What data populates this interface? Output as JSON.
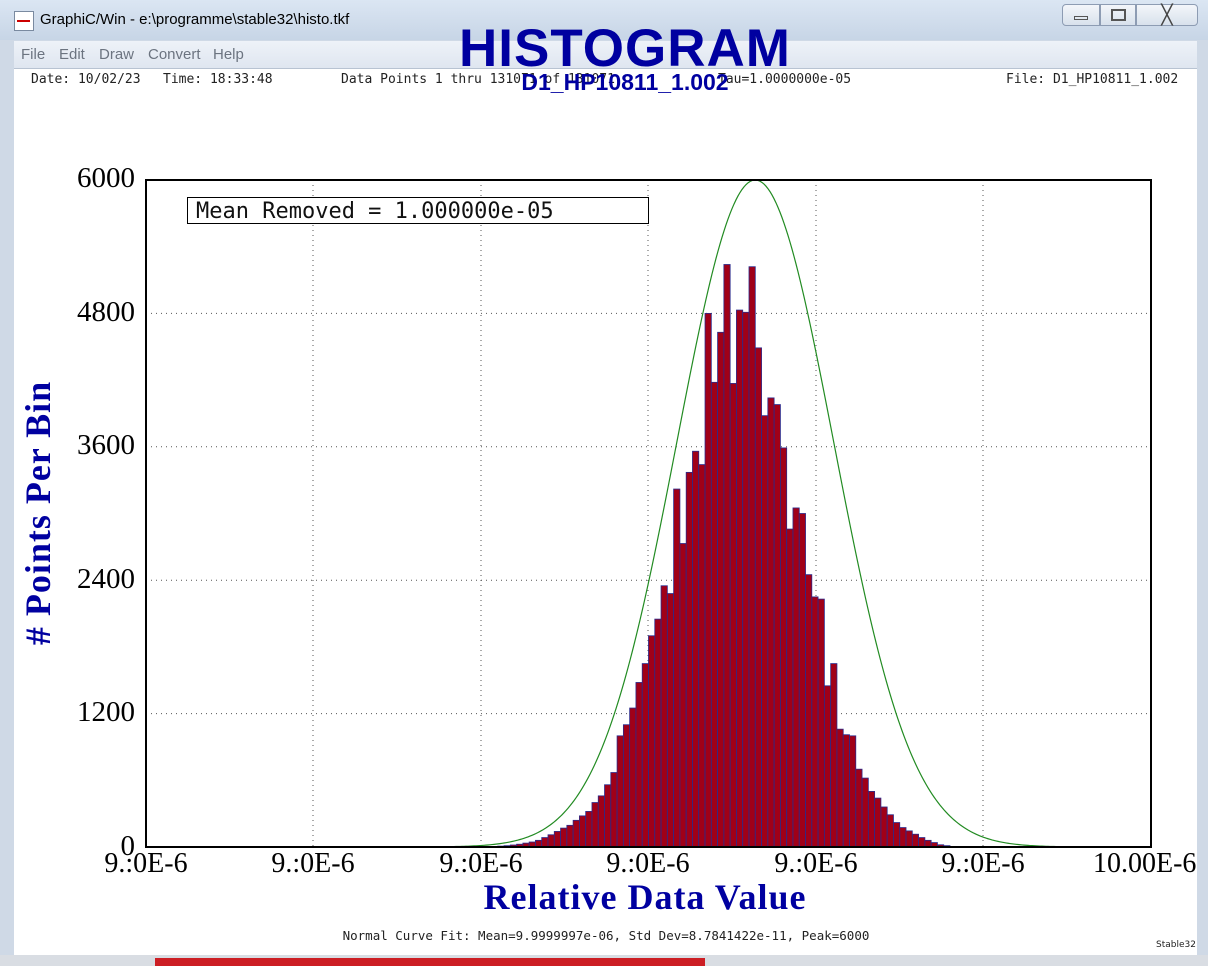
{
  "window": {
    "title": "GraphiC/Win - e:\\programme\\stable32\\histo.tkf",
    "icon": "graphic-app-icon",
    "controls": {
      "minimize": "minimize-icon",
      "maximize": "maximize-icon",
      "close": "close-icon",
      "close_glyph": "╳"
    }
  },
  "menu": [
    "File",
    "Edit",
    "Draw",
    "Convert",
    "Help"
  ],
  "header": {
    "date": "Date: 10/02/23",
    "time": "Time: 18:33:48",
    "points": "Data Points 1 thru 131071 of 131071",
    "tau": "Tau=1.0000000e-05",
    "file": "File: D1_HP10811_1.002"
  },
  "chart_data": {
    "type": "bar",
    "title": "HISTOGRAM",
    "subtitle": "D1_HP10811_1.002",
    "xlabel": "Relative Data Value",
    "ylabel": "# Points Per Bin",
    "ylim": [
      0,
      6000
    ],
    "yticks": [
      "0",
      "1200",
      "2400",
      "3600",
      "4800",
      "6000"
    ],
    "xticks": [
      "9.:0E-6",
      "9.:0E-6",
      "9.:0E-6",
      "9.:0E-6",
      "9.:0E-6",
      "9.:0E-6",
      "10.00E-6"
    ],
    "grid": true,
    "annotation": "Mean Removed = 1.000000e-05",
    "bin_count": 160,
    "first_bin_index": 56,
    "values": [
      8,
      12,
      18,
      25,
      35,
      45,
      60,
      85,
      110,
      140,
      170,
      195,
      240,
      280,
      320,
      400,
      460,
      560,
      670,
      1000,
      1100,
      1250,
      1480,
      1650,
      1900,
      2050,
      2350,
      2280,
      3220,
      2730,
      3370,
      3560,
      3440,
      4800,
      4180,
      4630,
      5240,
      4170,
      4830,
      4810,
      5220,
      4490,
      3880,
      4040,
      3980,
      3590,
      2860,
      3050,
      3000,
      2450,
      2250,
      2230,
      1450,
      1650,
      1060,
      1010,
      1000,
      700,
      620,
      500,
      440,
      360,
      290,
      220,
      175,
      145,
      115,
      85,
      60,
      40,
      20,
      12
    ]
  },
  "fit_curve": {
    "name": "Normal Curve Fit",
    "peak": 6000,
    "center_bin": 97.0,
    "sigma_bins": 12.5,
    "color": "#228b22"
  },
  "bar_color": "#a00018",
  "bar_edge_color": "#2a2a8c",
  "footer": {
    "fit": "Normal Curve Fit: Mean=9.9999997e-06, Std Dev=8.7841422e-11, Peak=6000",
    "brand": "Stable32"
  }
}
